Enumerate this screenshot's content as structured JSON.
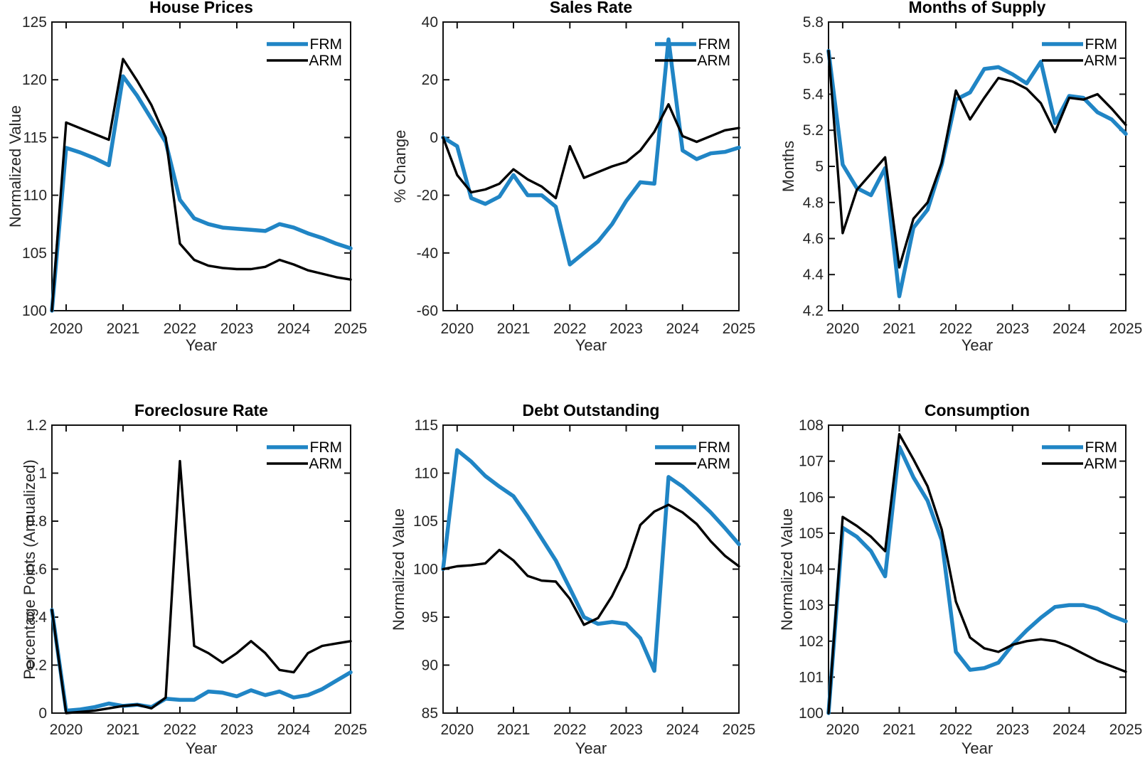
{
  "figure": {
    "layout": "2x3-subplot-grid",
    "legend_entries": [
      "FRM",
      "ARM"
    ],
    "colors": {
      "frm_line": "#2085c5",
      "arm_line": "#000000",
      "tick_label": "#262626",
      "axes_edge": "#111111",
      "background": "#ffffff"
    }
  },
  "chart_data": [
    {
      "type": "line",
      "title": "House Prices",
      "xlabel": "Year",
      "ylabel": "Normalized Value",
      "xlim": [
        2019.75,
        2025
      ],
      "ylim": [
        100,
        125
      ],
      "xticks": [
        2020,
        2021,
        2022,
        2023,
        2024,
        2025
      ],
      "xtick_labels": [
        "2020",
        "2021",
        "2022",
        "2023",
        "2024",
        "2025"
      ],
      "yticks": [
        100,
        105,
        110,
        115,
        120,
        125
      ],
      "ytick_labels": [
        "100",
        "105",
        "110",
        "115",
        "120",
        "125"
      ],
      "grid": false,
      "legend_position": "top-right",
      "x": [
        2019.75,
        2020,
        2020.25,
        2020.5,
        2020.75,
        2021,
        2021.25,
        2021.5,
        2021.75,
        2022,
        2022.25,
        2022.5,
        2022.75,
        2023,
        2023.25,
        2023.5,
        2023.75,
        2024,
        2024.25,
        2024.5,
        2024.75,
        2025
      ],
      "series": [
        {
          "name": "FRM",
          "color": "#2085c5",
          "values": [
            100,
            114.1,
            113.7,
            113.2,
            112.6,
            120.3,
            118.6,
            116.6,
            114.6,
            109.6,
            108.0,
            107.5,
            107.2,
            107.1,
            107.0,
            106.9,
            107.5,
            107.2,
            106.7,
            106.3,
            105.8,
            105.4
          ]
        },
        {
          "name": "ARM",
          "color": "#000000",
          "values": [
            100,
            116.3,
            115.8,
            115.3,
            114.8,
            121.8,
            119.9,
            117.8,
            115.0,
            105.8,
            104.4,
            103.9,
            103.7,
            103.6,
            103.6,
            103.8,
            104.4,
            104.0,
            103.5,
            103.2,
            102.9,
            102.7
          ]
        }
      ]
    },
    {
      "type": "line",
      "title": "Sales Rate",
      "xlabel": "Year",
      "ylabel": "% Change",
      "xlim": [
        2019.75,
        2025
      ],
      "ylim": [
        -60,
        40
      ],
      "xticks": [
        2020,
        2021,
        2022,
        2023,
        2024,
        2025
      ],
      "xtick_labels": [
        "2020",
        "2021",
        "2022",
        "2023",
        "2024",
        "2025"
      ],
      "yticks": [
        -60,
        -40,
        -20,
        0,
        20,
        40
      ],
      "ytick_labels": [
        "-60",
        "-40",
        "-20",
        "0",
        "20",
        "40"
      ],
      "grid": false,
      "legend_position": "top-right",
      "x": [
        2019.75,
        2020,
        2020.25,
        2020.5,
        2020.75,
        2021,
        2021.25,
        2021.5,
        2021.75,
        2022,
        2022.25,
        2022.5,
        2022.75,
        2023,
        2023.25,
        2023.5,
        2023.75,
        2024,
        2024.25,
        2024.5,
        2024.75,
        2025
      ],
      "series": [
        {
          "name": "FRM",
          "color": "#2085c5",
          "values": [
            0,
            -3,
            -21,
            -23,
            -20.5,
            -13,
            -20,
            -20,
            -24,
            -44,
            -40,
            -36,
            -30,
            -22,
            -15.5,
            -16,
            34,
            -4.5,
            -7.5,
            -5.5,
            -5,
            -3.5
          ]
        },
        {
          "name": "ARM",
          "color": "#000000",
          "values": [
            0,
            -13,
            -19,
            -18,
            -16,
            -11,
            -14.5,
            -17,
            -21,
            -3,
            -14,
            -12,
            -10,
            -8.5,
            -4.5,
            2,
            11.5,
            0.5,
            -1.5,
            0.5,
            2.5,
            3.3
          ]
        }
      ]
    },
    {
      "type": "line",
      "title": "Months of Supply",
      "xlabel": "Year",
      "ylabel": "Months",
      "xlim": [
        2019.75,
        2025
      ],
      "ylim": [
        4.2,
        5.8
      ],
      "xticks": [
        2020,
        2021,
        2022,
        2023,
        2024,
        2025
      ],
      "xtick_labels": [
        "2020",
        "2021",
        "2022",
        "2023",
        "2024",
        "2025"
      ],
      "yticks": [
        4.2,
        4.4,
        4.6,
        4.8,
        5,
        5.2,
        5.4,
        5.6,
        5.8
      ],
      "ytick_labels": [
        "4.2",
        "4.4",
        "4.6",
        "4.8",
        "5",
        "5.2",
        "5.4",
        "5.6",
        "5.8"
      ],
      "grid": false,
      "legend_position": "top-right",
      "x": [
        2019.75,
        2020,
        2020.25,
        2020.5,
        2020.75,
        2021,
        2021.25,
        2021.5,
        2021.75,
        2022,
        2022.25,
        2022.5,
        2022.75,
        2023,
        2023.25,
        2023.5,
        2023.75,
        2024,
        2024.25,
        2024.5,
        2024.75,
        2025
      ],
      "series": [
        {
          "name": "FRM",
          "color": "#2085c5",
          "values": [
            5.64,
            5.01,
            4.88,
            4.84,
            4.99,
            4.28,
            4.66,
            4.76,
            5.01,
            5.37,
            5.41,
            5.54,
            5.55,
            5.51,
            5.46,
            5.58,
            5.24,
            5.39,
            5.38,
            5.3,
            5.26,
            5.18
          ]
        },
        {
          "name": "ARM",
          "color": "#000000",
          "values": [
            5.64,
            4.63,
            4.87,
            4.96,
            5.05,
            4.44,
            4.71,
            4.8,
            5.02,
            5.42,
            5.26,
            5.38,
            5.49,
            5.47,
            5.43,
            5.35,
            5.19,
            5.38,
            5.37,
            5.4,
            5.32,
            5.23
          ]
        }
      ]
    },
    {
      "type": "line",
      "title": "Foreclosure Rate",
      "xlabel": "Year",
      "ylabel": "Percentage Points (Annualized)",
      "xlim": [
        2019.75,
        2025
      ],
      "ylim": [
        0,
        1.2
      ],
      "xticks": [
        2020,
        2021,
        2022,
        2023,
        2024,
        2025
      ],
      "xtick_labels": [
        "2020",
        "2021",
        "2022",
        "2023",
        "2024",
        "2025"
      ],
      "yticks": [
        0,
        0.2,
        0.4,
        0.6,
        0.8,
        1,
        1.2
      ],
      "ytick_labels": [
        "0",
        "0.2",
        "0.4",
        "0.6",
        "0.8",
        "1",
        "1.2"
      ],
      "grid": false,
      "legend_position": "top-right",
      "x": [
        2019.75,
        2020,
        2020.25,
        2020.5,
        2020.75,
        2021,
        2021.25,
        2021.5,
        2021.75,
        2022,
        2022.25,
        2022.5,
        2022.75,
        2023,
        2023.25,
        2023.5,
        2023.75,
        2024,
        2024.25,
        2024.5,
        2024.75,
        2025
      ],
      "series": [
        {
          "name": "FRM",
          "color": "#2085c5",
          "values": [
            0.43,
            0.01,
            0.015,
            0.025,
            0.04,
            0.03,
            0.035,
            0.025,
            0.06,
            0.055,
            0.055,
            0.09,
            0.085,
            0.07,
            0.095,
            0.075,
            0.09,
            0.065,
            0.075,
            0.1,
            0.135,
            0.17
          ]
        },
        {
          "name": "ARM",
          "color": "#000000",
          "values": [
            0.43,
            0,
            0.005,
            0.01,
            0.02,
            0.03,
            0.035,
            0.02,
            0.065,
            1.05,
            0.28,
            0.25,
            0.21,
            0.25,
            0.3,
            0.25,
            0.18,
            0.17,
            0.25,
            0.28,
            0.29,
            0.3
          ]
        }
      ]
    },
    {
      "type": "line",
      "title": "Debt Outstanding",
      "xlabel": "Year",
      "ylabel": "Normalized Value",
      "xlim": [
        2019.75,
        2025
      ],
      "ylim": [
        85,
        115
      ],
      "xticks": [
        2020,
        2021,
        2022,
        2023,
        2024,
        2025
      ],
      "xtick_labels": [
        "2020",
        "2021",
        "2022",
        "2023",
        "2024",
        "2025"
      ],
      "yticks": [
        85,
        90,
        95,
        100,
        105,
        110,
        115
      ],
      "ytick_labels": [
        "85",
        "90",
        "95",
        "100",
        "105",
        "110",
        "115"
      ],
      "grid": false,
      "legend_position": "top-right",
      "x": [
        2019.75,
        2020,
        2020.25,
        2020.5,
        2020.75,
        2021,
        2021.25,
        2021.5,
        2021.75,
        2022,
        2022.25,
        2022.5,
        2022.75,
        2023,
        2023.25,
        2023.5,
        2023.75,
        2024,
        2024.25,
        2024.5,
        2024.75,
        2025
      ],
      "series": [
        {
          "name": "FRM",
          "color": "#2085c5",
          "values": [
            100,
            112.4,
            111.2,
            109.7,
            108.6,
            107.6,
            105.5,
            103.2,
            100.9,
            98,
            95,
            94.3,
            94.5,
            94.3,
            92.8,
            89.4,
            109.6,
            108.6,
            107.3,
            105.9,
            104.3,
            102.6
          ]
        },
        {
          "name": "ARM",
          "color": "#000000",
          "values": [
            100,
            100.3,
            100.4,
            100.6,
            102,
            100.9,
            99.3,
            98.8,
            98.7,
            96.9,
            94.2,
            94.9,
            97.2,
            100.2,
            104.6,
            106,
            106.7,
            105.9,
            104.7,
            102.9,
            101.4,
            100.3
          ]
        }
      ]
    },
    {
      "type": "line",
      "title": "Consumption",
      "xlabel": "Year",
      "ylabel": "Normalized Value",
      "xlim": [
        2019.75,
        2025
      ],
      "ylim": [
        100,
        108
      ],
      "xticks": [
        2020,
        2021,
        2022,
        2023,
        2024,
        2025
      ],
      "xtick_labels": [
        "2020",
        "2021",
        "2022",
        "2023",
        "2024",
        "2025"
      ],
      "yticks": [
        100,
        101,
        102,
        103,
        104,
        105,
        106,
        107,
        108
      ],
      "ytick_labels": [
        "100",
        "101",
        "102",
        "103",
        "104",
        "105",
        "106",
        "107",
        "108"
      ],
      "grid": false,
      "legend_position": "top-right",
      "x": [
        2019.75,
        2020,
        2020.25,
        2020.5,
        2020.75,
        2021,
        2021.25,
        2021.5,
        2021.75,
        2022,
        2022.25,
        2022.5,
        2022.75,
        2023,
        2023.25,
        2023.5,
        2023.75,
        2024,
        2024.25,
        2024.5,
        2024.75,
        2025
      ],
      "series": [
        {
          "name": "FRM",
          "color": "#2085c5",
          "values": [
            100,
            105.15,
            104.9,
            104.5,
            103.8,
            107.4,
            106.55,
            105.9,
            104.8,
            101.7,
            101.2,
            101.25,
            101.4,
            101.9,
            102.3,
            102.65,
            102.95,
            103,
            103,
            102.9,
            102.7,
            102.55
          ]
        },
        {
          "name": "ARM",
          "color": "#000000",
          "values": [
            100,
            105.45,
            105.2,
            104.9,
            104.5,
            107.75,
            107.05,
            106.3,
            105.1,
            103.1,
            102.1,
            101.8,
            101.7,
            101.9,
            102,
            102.05,
            102,
            101.85,
            101.65,
            101.45,
            101.3,
            101.15
          ]
        }
      ]
    }
  ]
}
